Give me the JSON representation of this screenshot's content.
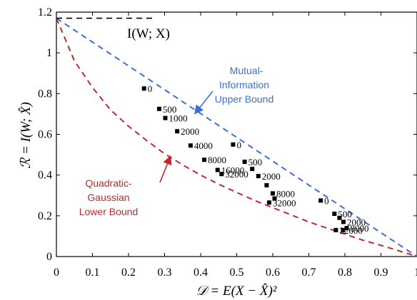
{
  "chart_data": {
    "type": "scatter",
    "xlabel": "𝒟 = E(X − X̂)²",
    "ylabel": "ℛ = I(W; X̂)",
    "xlim": [
      0,
      1
    ],
    "ylim": [
      0,
      1.2
    ],
    "x_ticks": [
      "0",
      "0.1",
      "0.2",
      "0.3",
      "0.4",
      "0.5",
      "0.6",
      "0.7",
      "0.8",
      "0.9",
      "1"
    ],
    "y_ticks": [
      "0",
      "0.2",
      "0.4",
      "0.6",
      "0.8",
      "1",
      "1.2"
    ],
    "grid": false,
    "reference_line": {
      "label": "I(W; X)",
      "y": 1.17,
      "x_range": [
        0,
        0.27
      ],
      "color": "#000000"
    },
    "series": [
      {
        "name": "Mutual-Information Upper Bound",
        "type": "line",
        "style": "dashed",
        "color": "#3b6fd6",
        "x": [
          0,
          1
        ],
        "y": [
          1.17,
          0
        ]
      },
      {
        "name": "Quadratic-Gaussian Lower Bound",
        "type": "line",
        "style": "dashed",
        "color": "#c0282d",
        "x": [
          0,
          0.05,
          0.1,
          0.15,
          0.2,
          0.25,
          0.3,
          0.35,
          0.4,
          0.45,
          0.5,
          0.55,
          0.6,
          0.65,
          0.7,
          0.75,
          0.8,
          0.85,
          0.9,
          0.95,
          1
        ],
        "y": [
          1.17,
          0.96,
          0.83,
          0.72,
          0.64,
          0.57,
          0.505,
          0.45,
          0.4,
          0.355,
          0.315,
          0.275,
          0.24,
          0.205,
          0.17,
          0.14,
          0.11,
          0.08,
          0.055,
          0.028,
          0
        ]
      },
      {
        "type": "scatter",
        "color": "#000000",
        "points": [
          {
            "x": 0.243,
            "y": 0.825,
            "label": "0"
          },
          {
            "x": 0.285,
            "y": 0.725,
            "label": "500"
          },
          {
            "x": 0.302,
            "y": 0.68,
            "label": "1000"
          },
          {
            "x": 0.335,
            "y": 0.615,
            "label": "2000"
          },
          {
            "x": 0.372,
            "y": 0.545,
            "label": "4000"
          },
          {
            "x": 0.41,
            "y": 0.475,
            "label": "8000"
          },
          {
            "x": 0.447,
            "y": 0.425,
            "label": "16000"
          },
          {
            "x": 0.458,
            "y": 0.405,
            "label": "32000"
          },
          {
            "x": 0.49,
            "y": 0.55,
            "label": "0"
          },
          {
            "x": 0.522,
            "y": 0.465,
            "label": "500"
          },
          {
            "x": 0.543,
            "y": 0.43,
            "label": ""
          },
          {
            "x": 0.56,
            "y": 0.395,
            "label": "2000"
          },
          {
            "x": 0.583,
            "y": 0.35,
            "label": ""
          },
          {
            "x": 0.6,
            "y": 0.31,
            "label": "8000"
          },
          {
            "x": 0.605,
            "y": 0.285,
            "label": ""
          },
          {
            "x": 0.59,
            "y": 0.265,
            "label": "32000"
          },
          {
            "x": 0.733,
            "y": 0.275,
            "label": "0"
          },
          {
            "x": 0.771,
            "y": 0.21,
            "label": "500"
          },
          {
            "x": 0.785,
            "y": 0.19,
            "label": ""
          },
          {
            "x": 0.796,
            "y": 0.17,
            "label": "2000"
          },
          {
            "x": 0.805,
            "y": 0.14,
            "label": "8000"
          },
          {
            "x": 0.795,
            "y": 0.13,
            "label": ""
          },
          {
            "x": 0.775,
            "y": 0.13,
            "label": "32000"
          }
        ]
      }
    ],
    "annotations": [
      {
        "lines": [
          "Mutual-",
          "Information",
          "Upper Bound"
        ],
        "color": "#3b6fd6"
      },
      {
        "lines": [
          "Quadratic-",
          "Gaussian",
          "Lower Bound"
        ],
        "color": "#c0282d"
      }
    ]
  }
}
